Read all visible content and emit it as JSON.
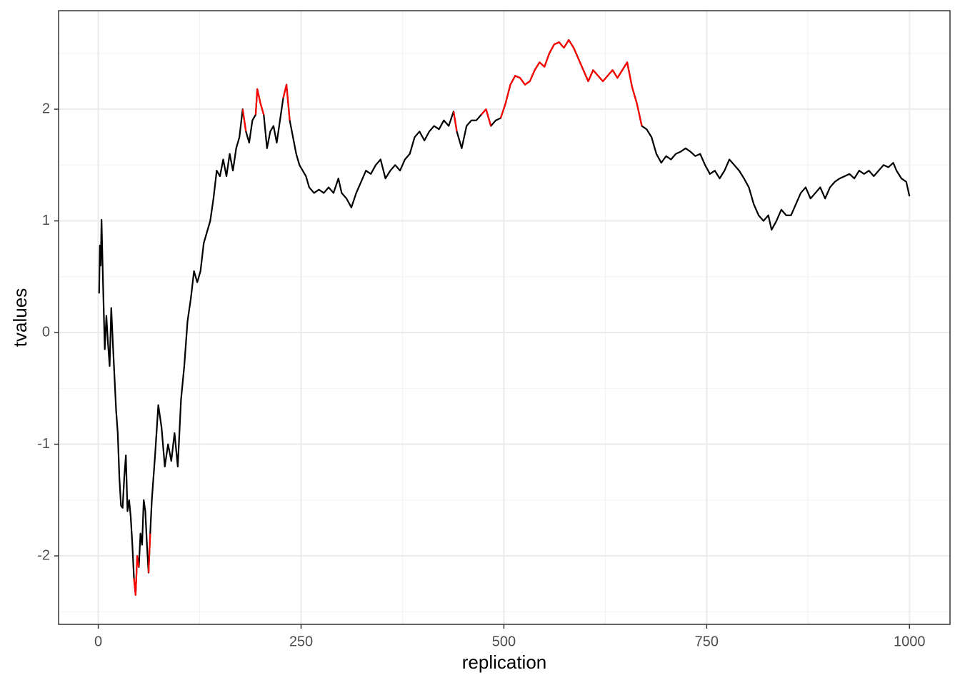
{
  "chart_data": {
    "type": "line",
    "x_label": "replication",
    "y_label": "tvalues",
    "xlim": [
      -48.95,
      1049.95
    ],
    "ylim": [
      -2.613,
      2.882
    ],
    "xticks": [
      0,
      250,
      500,
      750,
      1000
    ],
    "yticks": [
      -2,
      -1,
      0,
      1,
      2
    ],
    "grid": true,
    "minor_grid": true,
    "series": [
      {
        "color": "#000000",
        "x": [
          1,
          2,
          3,
          4,
          6,
          8,
          10,
          12,
          14,
          16,
          18,
          20,
          22,
          24,
          26,
          28,
          30,
          32,
          34,
          36,
          38,
          40,
          42,
          44,
          46,
          48,
          50,
          52,
          54,
          56,
          58,
          60,
          62,
          64,
          66,
          70,
          74,
          78,
          82,
          86,
          90,
          94,
          98,
          102,
          106,
          110,
          114,
          118,
          122,
          126,
          130,
          134,
          138,
          142,
          146,
          150,
          154,
          158,
          162,
          166,
          170,
          174,
          178,
          182,
          186,
          190,
          194,
          196,
          200,
          204,
          208,
          212,
          216,
          220,
          224,
          228,
          232,
          236,
          240,
          244,
          248,
          252,
          256,
          260,
          266,
          272,
          278,
          284,
          290,
          296,
          300,
          306,
          312,
          318,
          324,
          330,
          336,
          342,
          348,
          354,
          360,
          366,
          372,
          378,
          384,
          390,
          396,
          402,
          408,
          414,
          420,
          426,
          432,
          438,
          442,
          448,
          454,
          460,
          466,
          472,
          478,
          484,
          490,
          496,
          502,
          508,
          514,
          520,
          526,
          532,
          538,
          544,
          550,
          556,
          562,
          568,
          574,
          580,
          586,
          592,
          598,
          604,
          610,
          616,
          622,
          628,
          634,
          640,
          646,
          652,
          658,
          664,
          670,
          676,
          682,
          688,
          694,
          700,
          706,
          712,
          718,
          724,
          730,
          736,
          742,
          748,
          754,
          760,
          766,
          772,
          778,
          784,
          790,
          796,
          802,
          808,
          814,
          820,
          826,
          830,
          836,
          842,
          848,
          854,
          860,
          866,
          872,
          878,
          884,
          890,
          896,
          902,
          908,
          914,
          920,
          926,
          932,
          938,
          944,
          950,
          956,
          962,
          968,
          974,
          980,
          984,
          990,
          996,
          1000
        ],
        "values": [
          0.35,
          0.78,
          0.6,
          1.01,
          0.4,
          -0.15,
          0.15,
          -0.1,
          -0.3,
          0.22,
          -0.1,
          -0.4,
          -0.7,
          -0.9,
          -1.3,
          -1.55,
          -1.57,
          -1.3,
          -1.1,
          -1.6,
          -1.5,
          -1.65,
          -1.9,
          -2.2,
          -2.35,
          -2.0,
          -2.1,
          -1.8,
          -1.9,
          -1.5,
          -1.6,
          -1.9,
          -2.15,
          -1.8,
          -1.5,
          -1.1,
          -0.65,
          -0.85,
          -1.2,
          -1.0,
          -1.15,
          -0.9,
          -1.2,
          -0.6,
          -0.3,
          0.1,
          0.3,
          0.55,
          0.45,
          0.55,
          0.8,
          0.9,
          1.0,
          1.2,
          1.45,
          1.4,
          1.55,
          1.4,
          1.6,
          1.45,
          1.65,
          1.75,
          2.0,
          1.8,
          1.7,
          1.9,
          1.95,
          2.18,
          2.05,
          1.95,
          1.65,
          1.8,
          1.85,
          1.7,
          1.9,
          2.1,
          2.22,
          1.9,
          1.75,
          1.6,
          1.5,
          1.45,
          1.4,
          1.3,
          1.25,
          1.28,
          1.25,
          1.3,
          1.25,
          1.38,
          1.25,
          1.2,
          1.12,
          1.25,
          1.35,
          1.45,
          1.42,
          1.5,
          1.55,
          1.38,
          1.45,
          1.5,
          1.45,
          1.55,
          1.6,
          1.75,
          1.8,
          1.72,
          1.8,
          1.85,
          1.82,
          1.9,
          1.85,
          1.98,
          1.8,
          1.65,
          1.85,
          1.9,
          1.9,
          1.95,
          2.0,
          1.85,
          1.9,
          1.92,
          2.05,
          2.22,
          2.3,
          2.28,
          2.22,
          2.25,
          2.35,
          2.42,
          2.38,
          2.5,
          2.58,
          2.6,
          2.55,
          2.62,
          2.55,
          2.45,
          2.35,
          2.25,
          2.35,
          2.3,
          2.25,
          2.3,
          2.35,
          2.28,
          2.35,
          2.42,
          2.2,
          2.05,
          1.85,
          1.82,
          1.75,
          1.6,
          1.52,
          1.58,
          1.55,
          1.6,
          1.62,
          1.65,
          1.62,
          1.58,
          1.6,
          1.5,
          1.42,
          1.45,
          1.38,
          1.45,
          1.55,
          1.5,
          1.45,
          1.38,
          1.3,
          1.15,
          1.05,
          1.0,
          1.05,
          0.92,
          1.0,
          1.1,
          1.05,
          1.05,
          1.15,
          1.25,
          1.3,
          1.2,
          1.25,
          1.3,
          1.2,
          1.3,
          1.35,
          1.38,
          1.4,
          1.42,
          1.38,
          1.45,
          1.42,
          1.45,
          1.4,
          1.45,
          1.5,
          1.48,
          1.52,
          1.45,
          1.38,
          1.35,
          1.22
        ]
      },
      {
        "color": "#ff0000",
        "x": [
          44,
          46,
          48,
          50,
          55,
          62,
          64,
          100,
          178,
          182,
          190,
          194,
          196,
          200,
          204,
          215,
          228,
          232,
          236,
          300,
          438,
          442,
          460,
          472,
          478,
          484,
          495,
          496,
          502,
          508,
          514,
          520,
          526,
          532,
          538,
          544,
          550,
          556,
          562,
          568,
          574,
          580,
          586,
          592,
          598,
          604,
          610,
          616,
          622,
          628,
          634,
          640,
          646,
          652,
          658,
          664,
          670
        ],
        "values": [
          -2.2,
          -2.35,
          -2.0,
          -2.1,
          null,
          -2.15,
          -1.8,
          null,
          2.0,
          1.8,
          null,
          1.95,
          2.18,
          2.05,
          1.95,
          null,
          2.1,
          2.22,
          1.9,
          null,
          1.98,
          1.8,
          null,
          1.95,
          2.0,
          1.85,
          null,
          1.92,
          2.05,
          2.22,
          2.3,
          2.28,
          2.22,
          2.25,
          2.35,
          2.42,
          2.38,
          2.5,
          2.58,
          2.6,
          2.55,
          2.62,
          2.55,
          2.45,
          2.35,
          2.25,
          2.35,
          2.3,
          2.25,
          2.3,
          2.35,
          2.28,
          2.35,
          2.42,
          2.2,
          2.05,
          1.85
        ]
      }
    ]
  }
}
